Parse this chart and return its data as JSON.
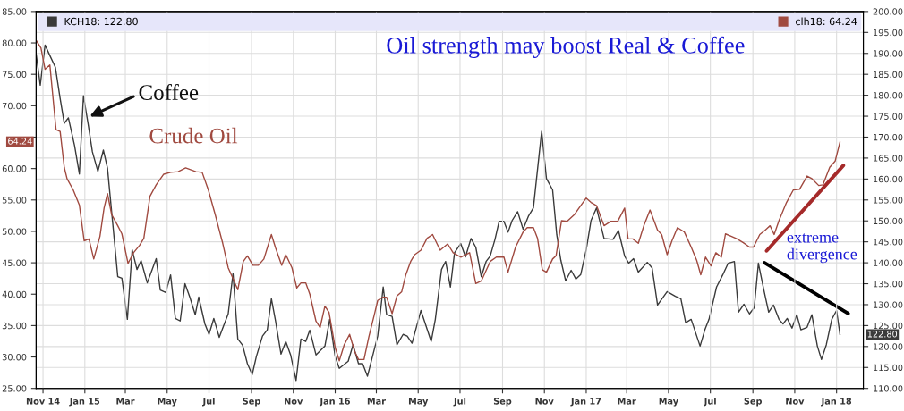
{
  "chart_data": {
    "type": "line",
    "title": "Oil strength may boost Real & Coffee",
    "legend": "top left",
    "grid": true,
    "annotations": [
      {
        "text": "Coffee",
        "x": "2015-01-08",
        "y": 68.3
      },
      "Crude Oil",
      "extreme divergence",
      "64.24",
      "122.80"
    ],
    "xlim": [
      "2014-10-22",
      "2018-02-09"
    ],
    "xticks": [
      {
        "value": "2014-11-01",
        "label": "Nov 14"
      },
      {
        "value": "2015-01-01",
        "label": "Jan 15"
      },
      {
        "value": "2015-03-01",
        "label": "Mar"
      },
      {
        "value": "2015-05-01",
        "label": "May"
      },
      {
        "value": "2015-07-01",
        "label": "Jul"
      },
      {
        "value": "2015-09-01",
        "label": "Sep"
      },
      {
        "value": "2015-11-01",
        "label": "Nov"
      },
      {
        "value": "2016-01-01",
        "label": "Jan 16"
      },
      {
        "value": "2016-03-01",
        "label": "Mar"
      },
      {
        "value": "2016-05-01",
        "label": "May"
      },
      {
        "value": "2016-07-01",
        "label": "Jul"
      },
      {
        "value": "2016-09-01",
        "label": "Sep"
      },
      {
        "value": "2016-11-01",
        "label": "Nov"
      },
      {
        "value": "2017-01-01",
        "label": "Jan 17"
      },
      {
        "value": "2017-03-01",
        "label": "Mar"
      },
      {
        "value": "2017-05-01",
        "label": "May"
      },
      {
        "value": "2017-07-01",
        "label": "Jul"
      },
      {
        "value": "2017-09-01",
        "label": "Sep"
      },
      {
        "value": "2017-11-01",
        "label": "Nov"
      },
      {
        "value": "2018-01-01",
        "label": "Jan 18"
      }
    ],
    "ylim": [
      25,
      85
    ],
    "yticks": [
      {
        "value": 25,
        "label": "25.00"
      },
      {
        "value": 30,
        "label": "30.00"
      },
      {
        "value": 35,
        "label": "35.00"
      },
      {
        "value": 40,
        "label": "40.00"
      },
      {
        "value": 45,
        "label": "45.00"
      },
      {
        "value": 50,
        "label": "50.00"
      },
      {
        "value": 55,
        "label": "55.00"
      },
      {
        "value": 60,
        "label": "60.00"
      },
      {
        "value": 65,
        "label": null
      },
      {
        "value": 70,
        "label": "70.00"
      },
      {
        "value": 75,
        "label": "75.00"
      },
      {
        "value": 80,
        "label": "80.00"
      },
      {
        "value": 85,
        "label": "85.00"
      }
    ],
    "y2lim": [
      110,
      200
    ],
    "y2ticks": [
      {
        "value": 110,
        "label": "110.00"
      },
      {
        "value": 115,
        "label": "115.00"
      },
      {
        "value": 120,
        "label": "120.00"
      },
      {
        "value": 125,
        "label": "125.00"
      },
      {
        "value": 130,
        "label": "130.00"
      },
      {
        "value": 135,
        "label": "135.00"
      },
      {
        "value": 140,
        "label": "140.00"
      },
      {
        "value": 145,
        "label": "145.00"
      },
      {
        "value": 150,
        "label": "150.00"
      },
      {
        "value": 155,
        "label": "155.00"
      },
      {
        "value": 160,
        "label": "160.00"
      },
      {
        "value": 165,
        "label": "165.00"
      },
      {
        "value": 170,
        "label": "170.00"
      },
      {
        "value": 175,
        "label": "175.00"
      },
      {
        "value": 180,
        "label": "180.00"
      },
      {
        "value": 185,
        "label": "185.00"
      },
      {
        "value": 190,
        "label": "190.00"
      },
      {
        "value": 195,
        "label": "195.00"
      },
      {
        "value": 200,
        "label": "200.00"
      }
    ],
    "series": [
      {
        "name": "KCH18: 122.80",
        "color": "#3a3a3a",
        "axis": "y2",
        "x": [
          "2014-10-22",
          "2014-10-28",
          "2014-11-04",
          "2014-11-11",
          "2014-11-19",
          "2014-11-26",
          "2014-12-02",
          "2014-12-08",
          "2014-12-17",
          "2014-12-24",
          "2014-12-30",
          "2015-01-06",
          "2015-01-12",
          "2015-01-20",
          "2015-01-28",
          "2015-02-03",
          "2015-02-11",
          "2015-02-18",
          "2015-02-24",
          "2015-03-04",
          "2015-03-11",
          "2015-03-18",
          "2015-03-24",
          "2015-04-02",
          "2015-04-15",
          "2015-04-21",
          "2015-04-29",
          "2015-05-06",
          "2015-05-13",
          "2015-05-20",
          "2015-05-27",
          "2015-06-03",
          "2015-06-11",
          "2015-06-16",
          "2015-06-25",
          "2015-07-01",
          "2015-07-08",
          "2015-07-16",
          "2015-07-21",
          "2015-07-29",
          "2015-08-05",
          "2015-08-12",
          "2015-08-19",
          "2015-08-26",
          "2015-09-02",
          "2015-09-08",
          "2015-09-17",
          "2015-09-24",
          "2015-09-30",
          "2015-10-06",
          "2015-10-14",
          "2015-10-21",
          "2015-10-28",
          "2015-11-05",
          "2015-11-12",
          "2015-11-19",
          "2015-11-25",
          "2015-12-04",
          "2015-12-17",
          "2015-12-24",
          "2016-01-01",
          "2016-01-07",
          "2016-01-20",
          "2016-01-27",
          "2016-02-04",
          "2016-02-10",
          "2016-02-17",
          "2016-03-03",
          "2016-03-11",
          "2016-03-16",
          "2016-03-24",
          "2016-03-31",
          "2016-04-09",
          "2016-04-15",
          "2016-04-22",
          "2016-05-05",
          "2016-05-20",
          "2016-05-26",
          "2016-06-04",
          "2016-06-10",
          "2016-06-17",
          "2016-06-23",
          "2016-07-02",
          "2016-07-09",
          "2016-07-17",
          "2016-07-24",
          "2016-08-01",
          "2016-08-08",
          "2016-08-14",
          "2016-08-21",
          "2016-08-27",
          "2016-09-03",
          "2016-09-09",
          "2016-09-15",
          "2016-09-23",
          "2016-10-01",
          "2016-10-09",
          "2016-10-16",
          "2016-10-28",
          "2016-11-04",
          "2016-11-13",
          "2016-11-19",
          "2016-11-25",
          "2016-12-02",
          "2016-12-10",
          "2016-12-17",
          "2016-12-24",
          "2017-01-01",
          "2017-01-08",
          "2017-01-16",
          "2017-01-27",
          "2017-02-09",
          "2017-02-17",
          "2017-02-26",
          "2017-03-04",
          "2017-03-11",
          "2017-03-18",
          "2017-03-31",
          "2017-04-07",
          "2017-04-15",
          "2017-04-29",
          "2017-05-11",
          "2017-05-19",
          "2017-05-26",
          "2017-06-03",
          "2017-06-16",
          "2017-06-23",
          "2017-06-29",
          "2017-07-10",
          "2017-07-19",
          "2017-07-27",
          "2017-08-05",
          "2017-08-11",
          "2017-08-19",
          "2017-08-27",
          "2017-09-03",
          "2017-09-09",
          "2017-09-17",
          "2017-09-24",
          "2017-10-01",
          "2017-10-09",
          "2017-10-15",
          "2017-10-21",
          "2017-10-28",
          "2017-11-04",
          "2017-11-10",
          "2017-11-19",
          "2017-11-26",
          "2017-12-04",
          "2017-12-10",
          "2017-12-17",
          "2017-12-25",
          "2018-01-01",
          "2018-01-06"
        ],
        "values": [
          189.9,
          182.4,
          192.0,
          189.5,
          186.7,
          179.2,
          173.3,
          174.6,
          168.0,
          161.2,
          179.9,
          172.9,
          166.5,
          161.8,
          166.9,
          162.6,
          148.8,
          136.7,
          136.3,
          126.5,
          143.1,
          138.4,
          140.5,
          135.2,
          141.0,
          133.5,
          132.9,
          137.1,
          126.7,
          126.1,
          135.0,
          131.8,
          127.6,
          131.8,
          125.4,
          122.9,
          126.7,
          122.2,
          124.4,
          127.8,
          137.4,
          121.8,
          120.3,
          115.9,
          113.3,
          117.6,
          122.5,
          124.0,
          131.4,
          126.1,
          118.2,
          121.2,
          118.0,
          111.9,
          121.8,
          121.2,
          123.9,
          118.0,
          120.1,
          126.5,
          117.6,
          114.8,
          116.5,
          120.4,
          115.9,
          115.9,
          112.9,
          122.5,
          134.2,
          127.6,
          127.2,
          120.4,
          122.9,
          122.5,
          120.8,
          128.6,
          121.2,
          126.5,
          138.4,
          140.3,
          134.2,
          142.4,
          144.6,
          141.4,
          145.8,
          143.7,
          136.7,
          140.3,
          141.6,
          145.6,
          149.9,
          149.9,
          147.3,
          150.1,
          152.2,
          148.0,
          151.2,
          153.1,
          171.4,
          160.1,
          157.4,
          146.7,
          140.6,
          135.7,
          138.2,
          136.1,
          137.2,
          143.1,
          150.1,
          153.1,
          145.8,
          145.6,
          147.7,
          141.6,
          139.9,
          141.0,
          137.8,
          140.1,
          138.8,
          129.9,
          133.1,
          132.0,
          131.4,
          125.7,
          126.5,
          120.1,
          124.0,
          126.5,
          134.2,
          137.1,
          139.9,
          140.3,
          128.2,
          130.1,
          127.8,
          129.3,
          139.9,
          133.5,
          128.2,
          129.9,
          126.5,
          125.4,
          126.7,
          124.4,
          127.6,
          124.0,
          124.6,
          127.6,
          120.1,
          116.9,
          120.4,
          126.5,
          128.6,
          122.8
        ]
      },
      {
        "name": "clh18: 64.24",
        "color": "#a04a40",
        "x": [
          "2014-10-22",
          "2014-10-29",
          "2014-11-04",
          "2014-11-11",
          "2014-11-20",
          "2014-11-26",
          "2014-12-02",
          "2014-12-06",
          "2014-12-15",
          "2014-12-24",
          "2014-12-31",
          "2015-01-07",
          "2015-01-14",
          "2015-01-23",
          "2015-01-29",
          "2015-02-03",
          "2015-02-09",
          "2015-02-18",
          "2015-02-24",
          "2015-03-05",
          "2015-03-13",
          "2015-03-22",
          "2015-03-28",
          "2015-04-06",
          "2015-04-15",
          "2015-04-26",
          "2015-05-06",
          "2015-05-17",
          "2015-05-28",
          "2015-06-12",
          "2015-06-21",
          "2015-06-30",
          "2015-07-10",
          "2015-07-21",
          "2015-07-29",
          "2015-08-05",
          "2015-08-12",
          "2015-08-20",
          "2015-08-26",
          "2015-09-03",
          "2015-09-11",
          "2015-09-19",
          "2015-09-30",
          "2015-10-06",
          "2015-10-15",
          "2015-10-21",
          "2015-10-30",
          "2015-11-06",
          "2015-11-12",
          "2015-11-19",
          "2015-11-25",
          "2015-12-04",
          "2015-12-10",
          "2015-12-17",
          "2015-12-23",
          "2016-01-01",
          "2016-01-07",
          "2016-01-14",
          "2016-01-22",
          "2016-01-29",
          "2016-02-04",
          "2016-02-12",
          "2016-02-19",
          "2016-02-27",
          "2016-03-03",
          "2016-03-10",
          "2016-03-16",
          "2016-03-24",
          "2016-03-31",
          "2016-04-07",
          "2016-04-13",
          "2016-04-20",
          "2016-04-26",
          "2016-05-05",
          "2016-05-14",
          "2016-05-22",
          "2016-06-02",
          "2016-06-13",
          "2016-06-21",
          "2016-07-02",
          "2016-07-15",
          "2016-07-24",
          "2016-08-01",
          "2016-08-14",
          "2016-08-23",
          "2016-09-03",
          "2016-09-09",
          "2016-09-20",
          "2016-10-01",
          "2016-10-07",
          "2016-10-16",
          "2016-10-22",
          "2016-10-29",
          "2016-11-04",
          "2016-11-13",
          "2016-11-18",
          "2016-11-26",
          "2016-12-04",
          "2016-12-15",
          "2016-12-24",
          "2017-01-01",
          "2017-01-08",
          "2017-01-16",
          "2017-01-27",
          "2017-02-06",
          "2017-02-16",
          "2017-02-26",
          "2017-03-03",
          "2017-03-10",
          "2017-03-18",
          "2017-03-26",
          "2017-04-04",
          "2017-04-15",
          "2017-04-21",
          "2017-04-29",
          "2017-05-06",
          "2017-05-14",
          "2017-05-24",
          "2017-06-03",
          "2017-06-11",
          "2017-06-17",
          "2017-06-24",
          "2017-07-02",
          "2017-07-09",
          "2017-07-17",
          "2017-07-23",
          "2017-08-01",
          "2017-08-09",
          "2017-08-18",
          "2017-08-27",
          "2017-09-02",
          "2017-09-11",
          "2017-09-19",
          "2017-09-26",
          "2017-10-02",
          "2017-10-09",
          "2017-10-20",
          "2017-10-30",
          "2017-11-08",
          "2017-11-19",
          "2017-11-26",
          "2017-12-06",
          "2017-12-12",
          "2017-12-22",
          "2017-12-30",
          "2018-01-06"
        ],
        "values": [
          80.4,
          79.2,
          75.8,
          76.5,
          66.2,
          65.9,
          60.2,
          58.4,
          56.6,
          54.2,
          48.5,
          48.8,
          45.6,
          49.2,
          53.7,
          56.0,
          52.7,
          50.9,
          49.6,
          44.9,
          46.6,
          47.8,
          48.9,
          55.6,
          57.4,
          59.1,
          59.4,
          59.5,
          60.1,
          59.5,
          59.4,
          56.6,
          52.7,
          48.1,
          44.2,
          42.5,
          40.7,
          45.2,
          46.1,
          44.6,
          44.6,
          45.6,
          49.5,
          47.4,
          44.6,
          46.3,
          44.2,
          41.0,
          41.8,
          41.8,
          40.0,
          35.7,
          34.7,
          38.1,
          37.1,
          31.5,
          29.4,
          31.9,
          33.6,
          31.0,
          29.6,
          29.6,
          33.2,
          36.7,
          39.0,
          39.5,
          39.5,
          36.9,
          39.7,
          40.4,
          43.1,
          45.2,
          46.3,
          47.0,
          48.9,
          49.5,
          47.0,
          48.0,
          46.6,
          45.9,
          46.6,
          41.7,
          42.1,
          45.2,
          45.9,
          45.9,
          43.5,
          47.5,
          49.9,
          50.6,
          50.6,
          48.9,
          43.9,
          43.5,
          45.6,
          46.1,
          51.7,
          51.6,
          52.7,
          54.1,
          55.3,
          54.6,
          54.1,
          50.9,
          51.6,
          51.6,
          53.7,
          48.8,
          48.8,
          48.1,
          50.9,
          53.4,
          50.2,
          49.5,
          46.3,
          48.5,
          50.6,
          49.9,
          47.5,
          45.4,
          43.1,
          45.9,
          44.5,
          46.6,
          45.9,
          49.6,
          49.2,
          48.8,
          48.2,
          47.5,
          47.5,
          49.5,
          50.2,
          50.9,
          49.5,
          51.7,
          54.6,
          56.6,
          56.7,
          58.8,
          58.4,
          57.3,
          57.4,
          60.2,
          61.2,
          64.24
        ]
      },
      {
        "color": "#a52a2a",
        "x": [
          "2017-09-21",
          "2018-01-11"
        ],
        "values": [
          46.9,
          60.5
        ]
      },
      {
        "color": "#000000",
        "axis": "y2",
        "x": [
          "2017-09-18",
          "2018-01-18"
        ],
        "values": [
          140.0,
          127.9
        ]
      }
    ]
  }
}
